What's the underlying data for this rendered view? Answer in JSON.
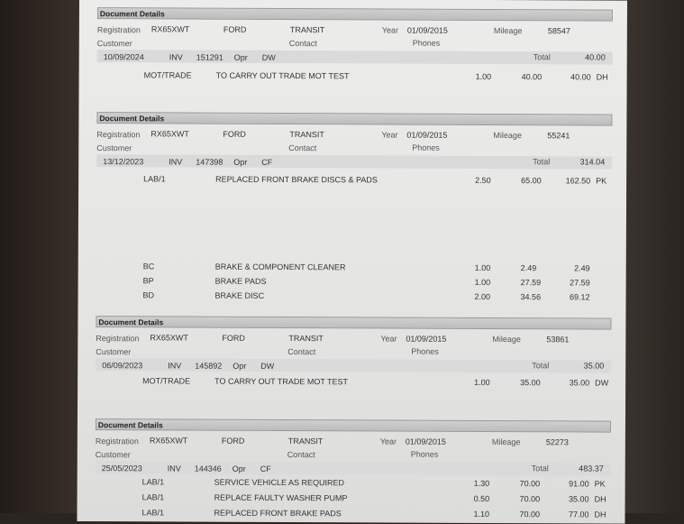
{
  "labels": {
    "header": "Document Details",
    "registration": "Registration",
    "customer": "Customer",
    "contact": "Contact",
    "phones": "Phones",
    "year": "Year",
    "mileage": "Mileage",
    "total": "Total",
    "inv": "INV",
    "opr": "Opr"
  },
  "documents": [
    {
      "registration": "RX65XWT",
      "make": "FORD",
      "model": "TRANSIT",
      "year": "01/09/2015",
      "mileage": "58547",
      "date": "10/09/2024",
      "invoice": "151291",
      "operator": "DW",
      "total": "40.00",
      "lines": [
        {
          "code": "MOT/TRADE",
          "description": "TO CARRY OUT TRADE MOT TEST",
          "qty": "1.00",
          "price": "40.00",
          "amount": "40.00",
          "tech": "DH"
        }
      ]
    },
    {
      "registration": "RX65XWT",
      "make": "FORD",
      "model": "TRANSIT",
      "year": "01/09/2015",
      "mileage": "55241",
      "date": "13/12/2023",
      "invoice": "147398",
      "operator": "CF",
      "total": "314.04",
      "lines": [
        {
          "code": "LAB/1",
          "description": "REPLACED FRONT BRAKE DISCS & PADS",
          "qty": "2.50",
          "price": "65.00",
          "amount": "162.50",
          "tech": "PK"
        },
        {
          "code": "BC",
          "description": "BRAKE & COMPONENT CLEANER",
          "qty": "1.00",
          "price": "2.49",
          "amount": "2.49",
          "tech": ""
        },
        {
          "code": "BP",
          "description": "BRAKE PADS",
          "qty": "1.00",
          "price": "27.59",
          "amount": "27.59",
          "tech": ""
        },
        {
          "code": "BD",
          "description": "BRAKE DISC",
          "qty": "2.00",
          "price": "34.56",
          "amount": "69.12",
          "tech": ""
        }
      ]
    },
    {
      "registration": "RX65XWT",
      "make": "FORD",
      "model": "TRANSIT",
      "year": "01/09/2015",
      "mileage": "53861",
      "date": "06/09/2023",
      "invoice": "145892",
      "operator": "DW",
      "total": "35.00",
      "lines": [
        {
          "code": "MOT/TRADE",
          "description": "TO CARRY OUT TRADE MOT TEST",
          "qty": "1.00",
          "price": "35.00",
          "amount": "35.00",
          "tech": "DW"
        }
      ]
    },
    {
      "registration": "RX65XWT",
      "make": "FORD",
      "model": "TRANSIT",
      "year": "01/09/2015",
      "mileage": "52273",
      "date": "25/05/2023",
      "invoice": "144346",
      "operator": "CF",
      "total": "483.37",
      "lines": [
        {
          "code": "LAB/1",
          "description": "SERVICE VEHICLE AS REQUIRED",
          "qty": "1.30",
          "price": "70.00",
          "amount": "91.00",
          "tech": "PK"
        },
        {
          "code": "LAB/1",
          "description": "REPLACE FAULTY WASHER PUMP",
          "qty": "0.50",
          "price": "70.00",
          "amount": "35.00",
          "tech": "DH"
        },
        {
          "code": "LAB/1",
          "description": "REPLACED FRONT BRAKE PADS",
          "qty": "1.10",
          "price": "70.00",
          "amount": "77.00",
          "tech": "DH"
        }
      ]
    }
  ]
}
